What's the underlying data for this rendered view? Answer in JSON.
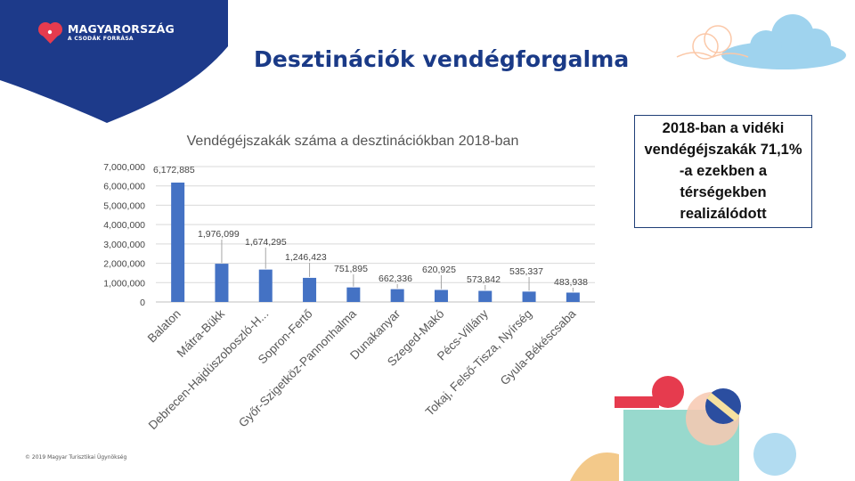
{
  "brand": {
    "name": "MAGYARORSZÁG",
    "tagline": "A CSODÁK FORRÁSA"
  },
  "page": {
    "title": "Desztinációk vendégforgalma",
    "note": "2018-ban a vidéki vendégéjszakák 71,1% -a ezekben a térségekben realizálódott",
    "copyright": "© 2019 Magyar Turisztikai Ügynökség"
  },
  "colors": {
    "bar": "#4472c4",
    "brand_blue": "#1a3a87",
    "cloud": "#9fd3ee"
  },
  "chart_data": {
    "type": "bar",
    "title": "Vendégéjszakák száma a desztinációkban 2018-ban",
    "categories": [
      "Balaton",
      "Mátra-Bükk",
      "Debrecen-Hajdúszoboszló-H...",
      "Sopron-Fertő",
      "Győr-Szigetköz-Pannonhalma",
      "Dunakanyar",
      "Szeged-Makó",
      "Pécs-Villány",
      "Tokaj, Felső-Tisza, Nyírség",
      "Gyula-Békéscsaba"
    ],
    "values": [
      6172885,
      1976099,
      1674295,
      1246423,
      751895,
      662336,
      620925,
      573842,
      535337,
      483938
    ],
    "data_labels": [
      "6,172,885",
      "1,976,099",
      "1,674,295",
      "1,246,423",
      "751,895",
      "662,336",
      "620,925",
      "573,842",
      "535,337",
      "483,938"
    ],
    "yticks": [
      "0",
      "1,000,000",
      "2,000,000",
      "3,000,000",
      "4,000,000",
      "5,000,000",
      "6,000,000",
      "7,000,000"
    ],
    "ylim": [
      0,
      7000000
    ],
    "grid": true,
    "legend": "none"
  }
}
